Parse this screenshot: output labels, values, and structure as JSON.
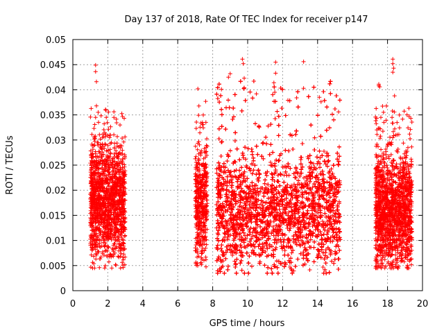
{
  "colors": {
    "series": "#ff0000",
    "grid": "#a0a0a0",
    "axis": "#000000",
    "background": "#ffffff"
  },
  "chart_data": {
    "type": "scatter",
    "title": "Day 137 of 2018, Rate Of TEC Index for receiver p147",
    "xlabel": "GPS time / hours",
    "ylabel": "ROTI / TECUs",
    "xlim": [
      0,
      20
    ],
    "ylim": [
      0,
      0.05
    ],
    "x_ticks": [
      0,
      2,
      4,
      6,
      8,
      10,
      12,
      14,
      16,
      18,
      20
    ],
    "x_tick_labels": [
      "0",
      "2",
      "4",
      "6",
      "8",
      "10",
      "12",
      "14",
      "16",
      "18",
      "20"
    ],
    "y_ticks": [
      0,
      0.005,
      0.01,
      0.015,
      0.02,
      0.025,
      0.03,
      0.035,
      0.04,
      0.045,
      0.05
    ],
    "y_tick_labels": [
      "0",
      "0.005",
      "0.01",
      "0.015",
      "0.02",
      "0.025",
      "0.03",
      "0.035",
      "0.04",
      "0.045",
      "0.05"
    ],
    "grid": true,
    "marker": "plus",
    "series": [
      {
        "name": "ROTI",
        "clusters": [
          {
            "x_range": [
              1.0,
              3.0
            ],
            "y_range": [
              0.0045,
              0.037
            ],
            "density": 1400,
            "y_center": 0.018
          },
          {
            "x_range": [
              7.0,
              7.7
            ],
            "y_range": [
              0.0045,
              0.037
            ],
            "density": 450,
            "y_center": 0.018
          },
          {
            "x_range": [
              8.2,
              15.3
            ],
            "y_range": [
              0.0035,
              0.042
            ],
            "density": 5200,
            "y_center": 0.016
          },
          {
            "x_range": [
              17.3,
              19.4
            ],
            "y_range": [
              0.0045,
              0.037
            ],
            "density": 1500,
            "y_center": 0.016
          }
        ],
        "outliers": [
          [
            1.3,
            0.0449
          ],
          [
            1.3,
            0.0436
          ],
          [
            1.35,
            0.0416
          ],
          [
            1.35,
            0.0368
          ],
          [
            2.35,
            0.0345
          ],
          [
            2.7,
            0.033
          ],
          [
            7.15,
            0.0402
          ],
          [
            7.6,
            0.0377
          ],
          [
            9.0,
            0.0432
          ],
          [
            8.9,
            0.0425
          ],
          [
            9.7,
            0.0461
          ],
          [
            9.75,
            0.0452
          ],
          [
            9.8,
            0.0423
          ],
          [
            9.8,
            0.0404
          ],
          [
            11.6,
            0.0455
          ],
          [
            11.6,
            0.0433
          ],
          [
            11.5,
            0.0414
          ],
          [
            11.55,
            0.0395
          ],
          [
            13.2,
            0.0456
          ],
          [
            13.2,
            0.0403
          ],
          [
            14.1,
            0.0385
          ],
          [
            14.2,
            0.0376
          ],
          [
            17.5,
            0.0411
          ],
          [
            17.5,
            0.0408
          ],
          [
            17.55,
            0.0406
          ],
          [
            18.3,
            0.0461
          ],
          [
            18.3,
            0.0452
          ],
          [
            18.35,
            0.0443
          ],
          [
            18.3,
            0.0435
          ],
          [
            18.4,
            0.0388
          ],
          [
            12.3,
            0.0379
          ],
          [
            10.5,
            0.0392
          ],
          [
            8.5,
            0.0401
          ],
          [
            12.8,
            0.0384
          ],
          [
            15.2,
            0.0356
          ]
        ]
      }
    ]
  }
}
